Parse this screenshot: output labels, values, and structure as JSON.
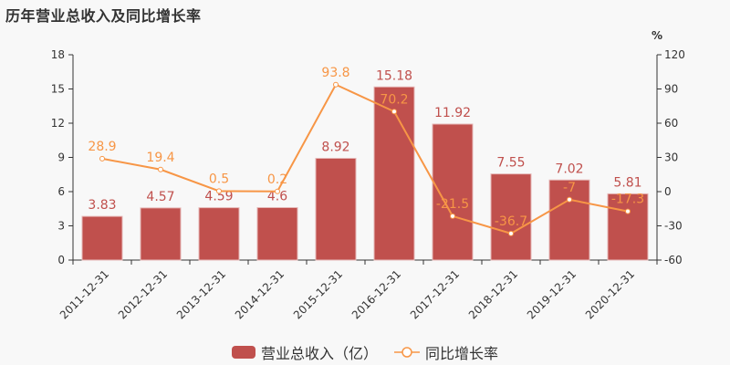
{
  "title": "历年营业总收入及同比增长率",
  "right_axis_unit": "%",
  "legend": {
    "bar_label": "营业总收入（亿）",
    "line_label": "同比增长率"
  },
  "colors": {
    "bar": "#c0504d",
    "line": "#f79646"
  },
  "chart_data": {
    "type": "bar+line",
    "title": "历年营业总收入及同比增长率",
    "categories": [
      "2011-12-31",
      "2012-12-31",
      "2013-12-31",
      "2014-12-31",
      "2015-12-31",
      "2016-12-31",
      "2017-12-31",
      "2018-12-31",
      "2019-12-31",
      "2020-12-31"
    ],
    "series": [
      {
        "name": "营业总收入（亿）",
        "type": "bar",
        "axis": "left",
        "values": [
          3.83,
          4.57,
          4.59,
          4.6,
          8.92,
          15.18,
          11.92,
          7.55,
          7.02,
          5.81
        ]
      },
      {
        "name": "同比增长率",
        "type": "line",
        "axis": "right",
        "values": [
          28.9,
          19.4,
          0.5,
          0.2,
          93.8,
          70.2,
          -21.5,
          -36.7,
          -7,
          -17.3
        ]
      }
    ],
    "left_axis": {
      "ylim": [
        0,
        18
      ],
      "ticks": [
        0,
        3,
        6,
        9,
        12,
        15,
        18
      ]
    },
    "right_axis": {
      "ylim": [
        -60,
        120
      ],
      "ticks": [
        -60,
        -30,
        0,
        30,
        60,
        90,
        120
      ],
      "label": "%"
    },
    "xlabel": "",
    "ylabel": "",
    "grid": false,
    "legend_position": "bottom"
  }
}
